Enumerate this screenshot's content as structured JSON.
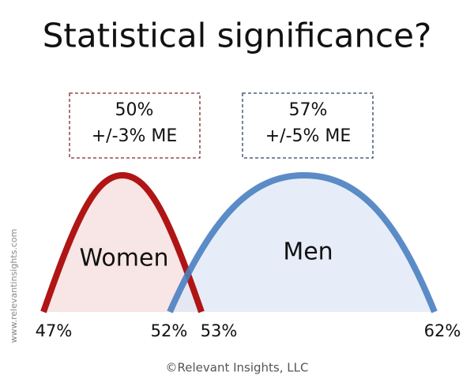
{
  "title": "Statistical significance?",
  "boxes": [
    {
      "line1": "50%",
      "line2": "+/-3% ME"
    },
    {
      "line1": "57%",
      "line2": "+/-5% ME"
    }
  ],
  "curves": [
    {
      "label": "Women"
    },
    {
      "label": "Men"
    }
  ],
  "axis_labels": [
    "47%",
    "52%",
    "53%",
    "62%"
  ],
  "watermark": "www.relevantinsights.com",
  "copyright": "©Relevant Insights, LLC"
}
